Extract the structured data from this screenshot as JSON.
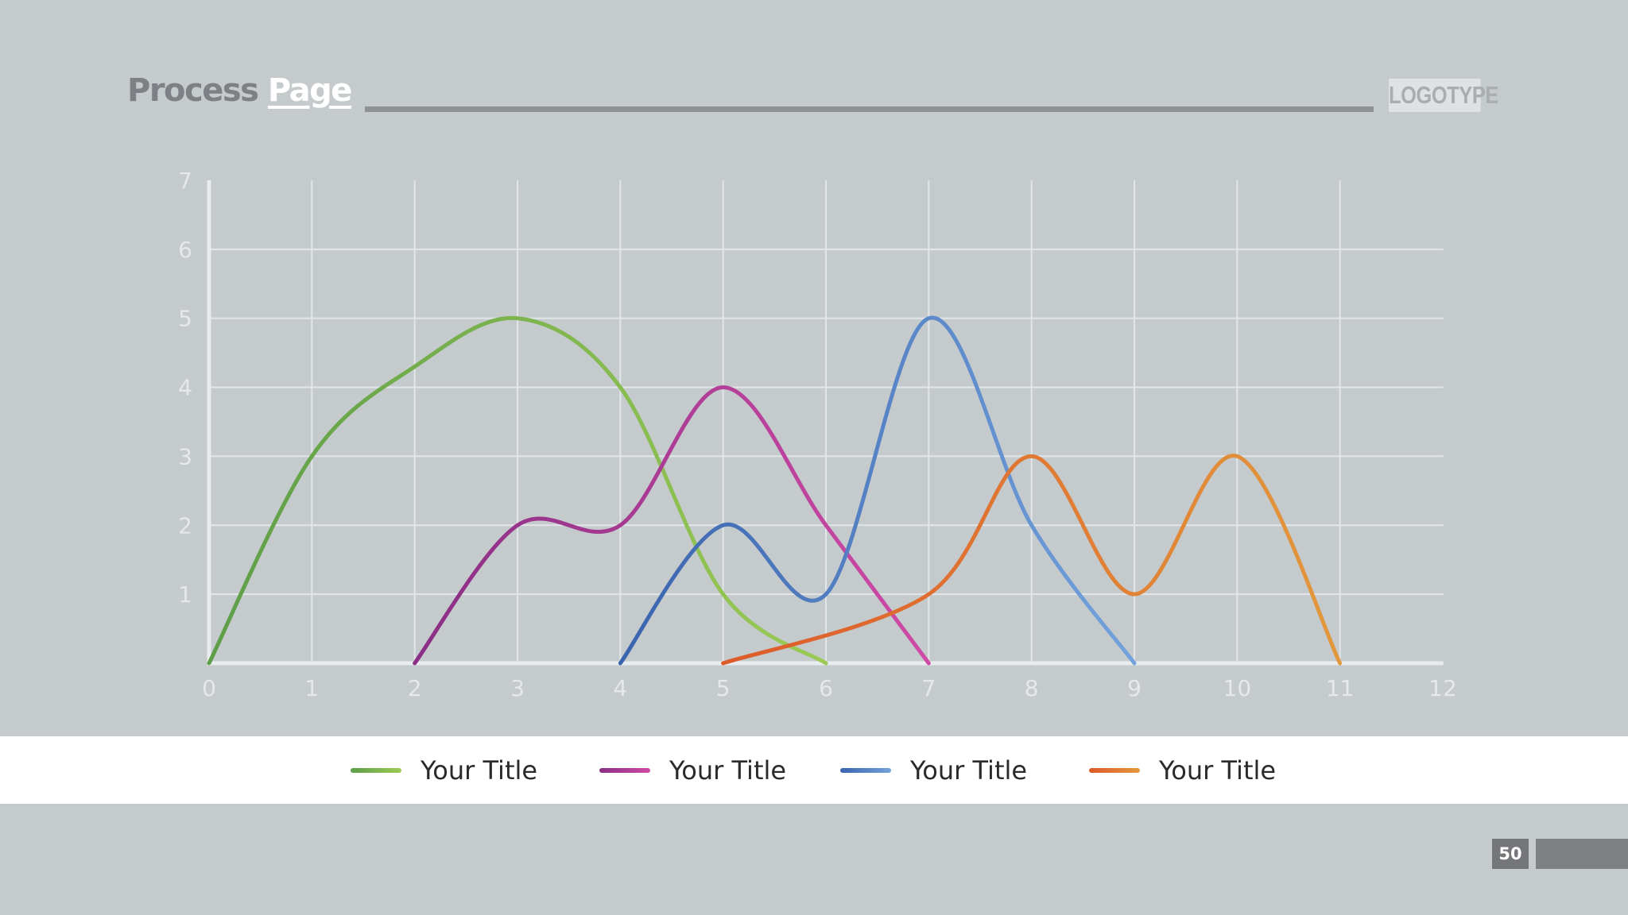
{
  "header": {
    "title_word1": "Process",
    "title_word2": "Page",
    "logo_text": "LOGOTYPE"
  },
  "page_number": "50",
  "chart_data": {
    "type": "line",
    "title": "",
    "xlabel": "",
    "ylabel": "",
    "xlim": [
      0,
      12
    ],
    "ylim": [
      0,
      7
    ],
    "x_ticks": [
      "0",
      "1",
      "2",
      "3",
      "4",
      "5",
      "6",
      "7",
      "8",
      "9",
      "10",
      "11",
      "12"
    ],
    "y_ticks": [
      "1",
      "2",
      "3",
      "4",
      "5",
      "6",
      "7"
    ],
    "grid": true,
    "legend_position": "bottom",
    "series": [
      {
        "name": "Your Title",
        "x": [
          0,
          1,
          2,
          3,
          4,
          5,
          6
        ],
        "y": [
          0,
          3,
          4.3,
          5,
          4,
          1,
          0
        ],
        "color_start": "#5d9e48",
        "color_end": "#9cca55"
      },
      {
        "name": "Your Title",
        "x": [
          2,
          3,
          4,
          5,
          6,
          7
        ],
        "y": [
          0,
          2,
          2,
          4,
          2,
          0
        ],
        "color_start": "#8a2f85",
        "color_end": "#cf4aa6"
      },
      {
        "name": "Your Title",
        "x": [
          4,
          5,
          6,
          7,
          8,
          9
        ],
        "y": [
          0,
          2,
          1,
          5,
          2,
          0
        ],
        "color_start": "#3a64ae",
        "color_end": "#73a2dc"
      },
      {
        "name": "Your Title",
        "x": [
          5,
          7,
          8,
          9,
          10,
          11
        ],
        "y": [
          0,
          1,
          3,
          1,
          3,
          0
        ],
        "color_start": "#dd5a2a",
        "color_end": "#e2983d"
      }
    ]
  }
}
